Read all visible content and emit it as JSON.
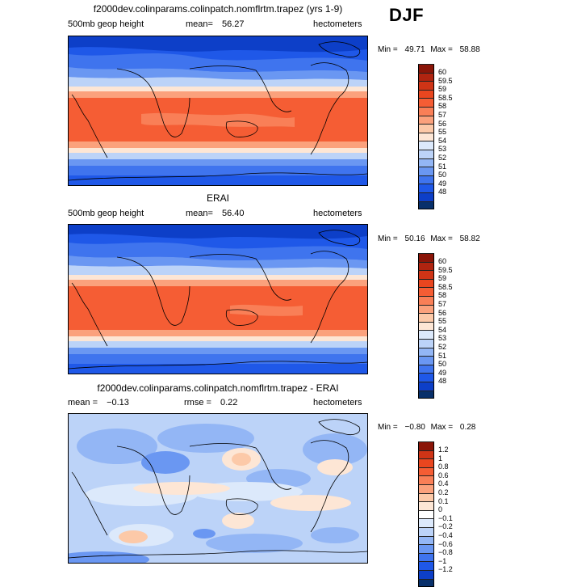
{
  "season": "DJF",
  "colors": {
    "full": [
      "#08306b",
      "#0d3fc8",
      "#1f58e8",
      "#3f74ee",
      "#6a97f2",
      "#93b6f5",
      "#bcd3f8",
      "#dce9fb",
      "#fde6d5",
      "#fcc9a8",
      "#fba17c",
      "#f97f57",
      "#f55d34",
      "#e9461f",
      "#cf3416",
      "#b02410",
      "#8a1508"
    ],
    "diff": [
      "#08306b",
      "#0d3fc8",
      "#1f58e8",
      "#3f74ee",
      "#6a97f2",
      "#93b6f5",
      "#bcd3f8",
      "#dce9fb",
      "#ffffff",
      "#fde6d5",
      "#fcc9a8",
      "#fba17c",
      "#f97f57",
      "#f55d34",
      "#e9461f",
      "#cf3416",
      "#8a1508"
    ]
  },
  "panels": [
    {
      "title": "f2000dev.colinparams.colinpatch.nomflrtm.trapez (yrs 1-9)",
      "left": "500mb geop height",
      "mean_label": "mean=",
      "mean_value": "56.27",
      "units": "hectometers",
      "min_label": "Min =",
      "min_value": "49.71",
      "max_label": "Max =",
      "max_value": "58.88",
      "levels": [
        "60",
        "59.5",
        "59",
        "58.5",
        "58",
        "57",
        "56",
        "55",
        "54",
        "53",
        "52",
        "51",
        "50",
        "49",
        "48"
      ]
    },
    {
      "title": "ERAI",
      "left": "500mb geop height",
      "mean_label": "mean=",
      "mean_value": "56.40",
      "units": "hectometers",
      "min_label": "Min =",
      "min_value": "50.16",
      "max_label": "Max =",
      "max_value": "58.82",
      "levels": [
        "60",
        "59.5",
        "59",
        "58.5",
        "58",
        "57",
        "56",
        "55",
        "54",
        "53",
        "52",
        "51",
        "50",
        "49",
        "48"
      ]
    },
    {
      "title": "f2000dev.colinparams.colinpatch.nomflrtm.trapez - ERAI",
      "left": "mean =",
      "left_value": "−0.13",
      "rmse_label": "rmse =",
      "rmse_value": "0.22",
      "units": "hectometers",
      "min_label": "Min =",
      "min_value": "−0.80",
      "max_label": "Max =",
      "max_value": "0.28",
      "levels": [
        "1.2",
        "1",
        "0.8",
        "0.6",
        "0.4",
        "0.2",
        "0.1",
        "0",
        "−0.1",
        "−0.2",
        "−0.4",
        "−0.6",
        "−0.8",
        "−1",
        "−1.2"
      ]
    }
  ]
}
